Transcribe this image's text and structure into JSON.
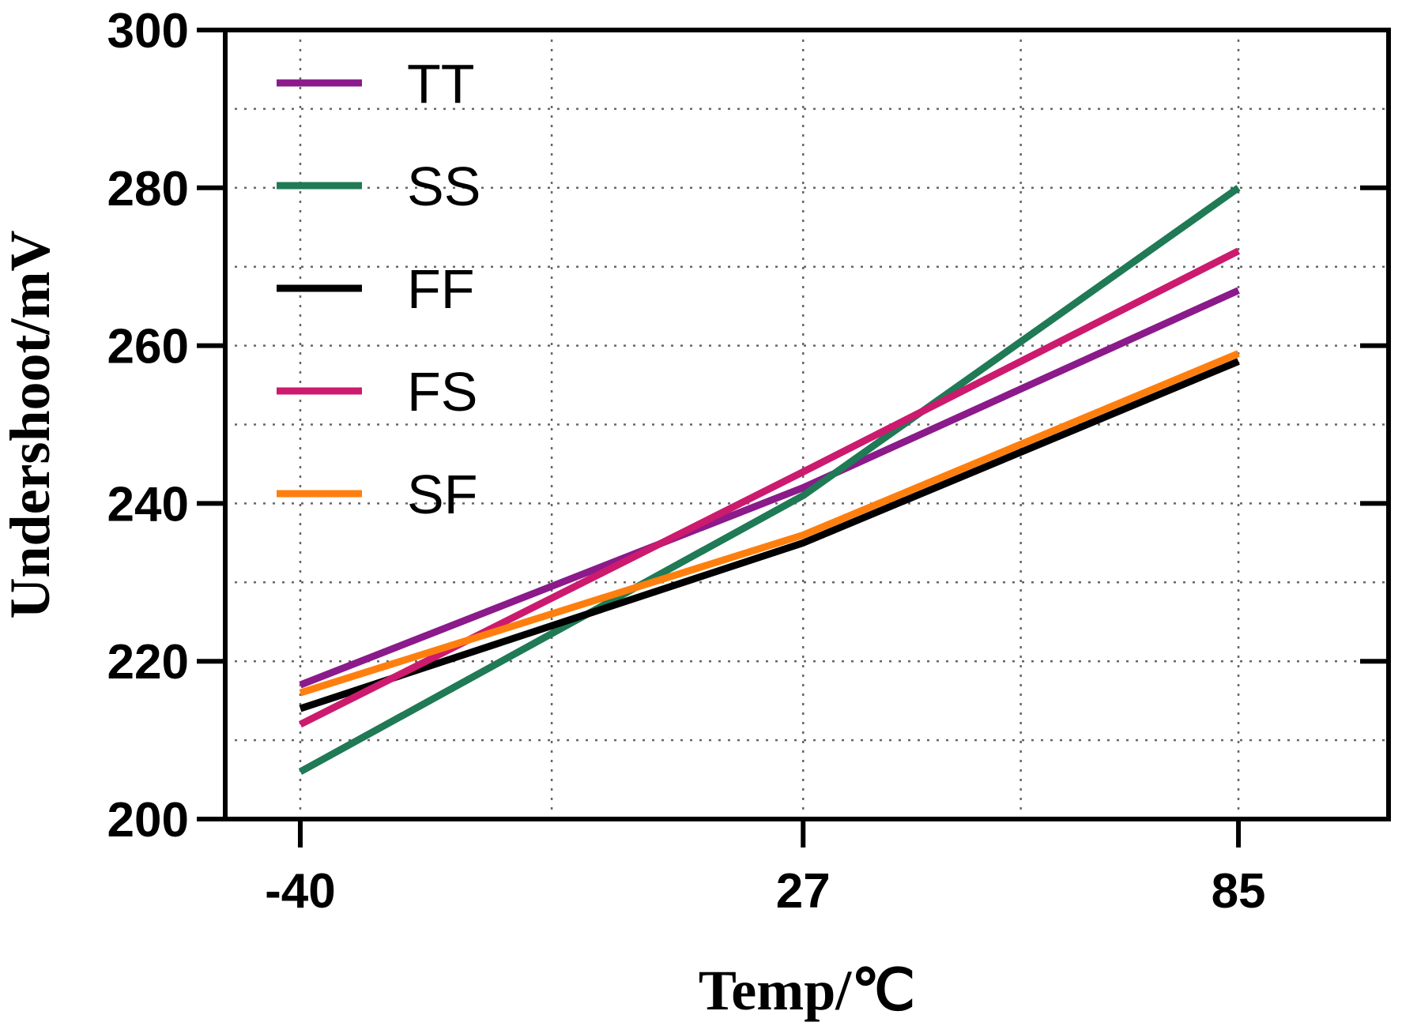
{
  "chart_data": {
    "type": "line",
    "title": "",
    "xlabel": "Temp/℃",
    "ylabel": "Undershoot/mV",
    "x": [
      -40,
      27,
      85
    ],
    "x_tick_labels": [
      "-40",
      "27",
      "85"
    ],
    "xlim": [
      -50,
      105
    ],
    "ylim": [
      200,
      300
    ],
    "y_ticks": [
      200,
      220,
      240,
      260,
      280,
      300
    ],
    "y_tick_labels": [
      "200",
      "220",
      "240",
      "260",
      "280",
      "300"
    ],
    "grid": true,
    "legend_position": "top-left",
    "series": [
      {
        "name": "TT",
        "color": "#8b1a8b",
        "values": [
          217,
          242,
          267
        ]
      },
      {
        "name": "SS",
        "color": "#1f7a55",
        "values": [
          206,
          241,
          280
        ]
      },
      {
        "name": "FF",
        "color": "#000000",
        "values": [
          214,
          235,
          258
        ]
      },
      {
        "name": "FS",
        "color": "#cc1a6e",
        "values": [
          212,
          244,
          272
        ]
      },
      {
        "name": "SF",
        "color": "#ff7f0e",
        "values": [
          216,
          236,
          259
        ]
      }
    ]
  }
}
